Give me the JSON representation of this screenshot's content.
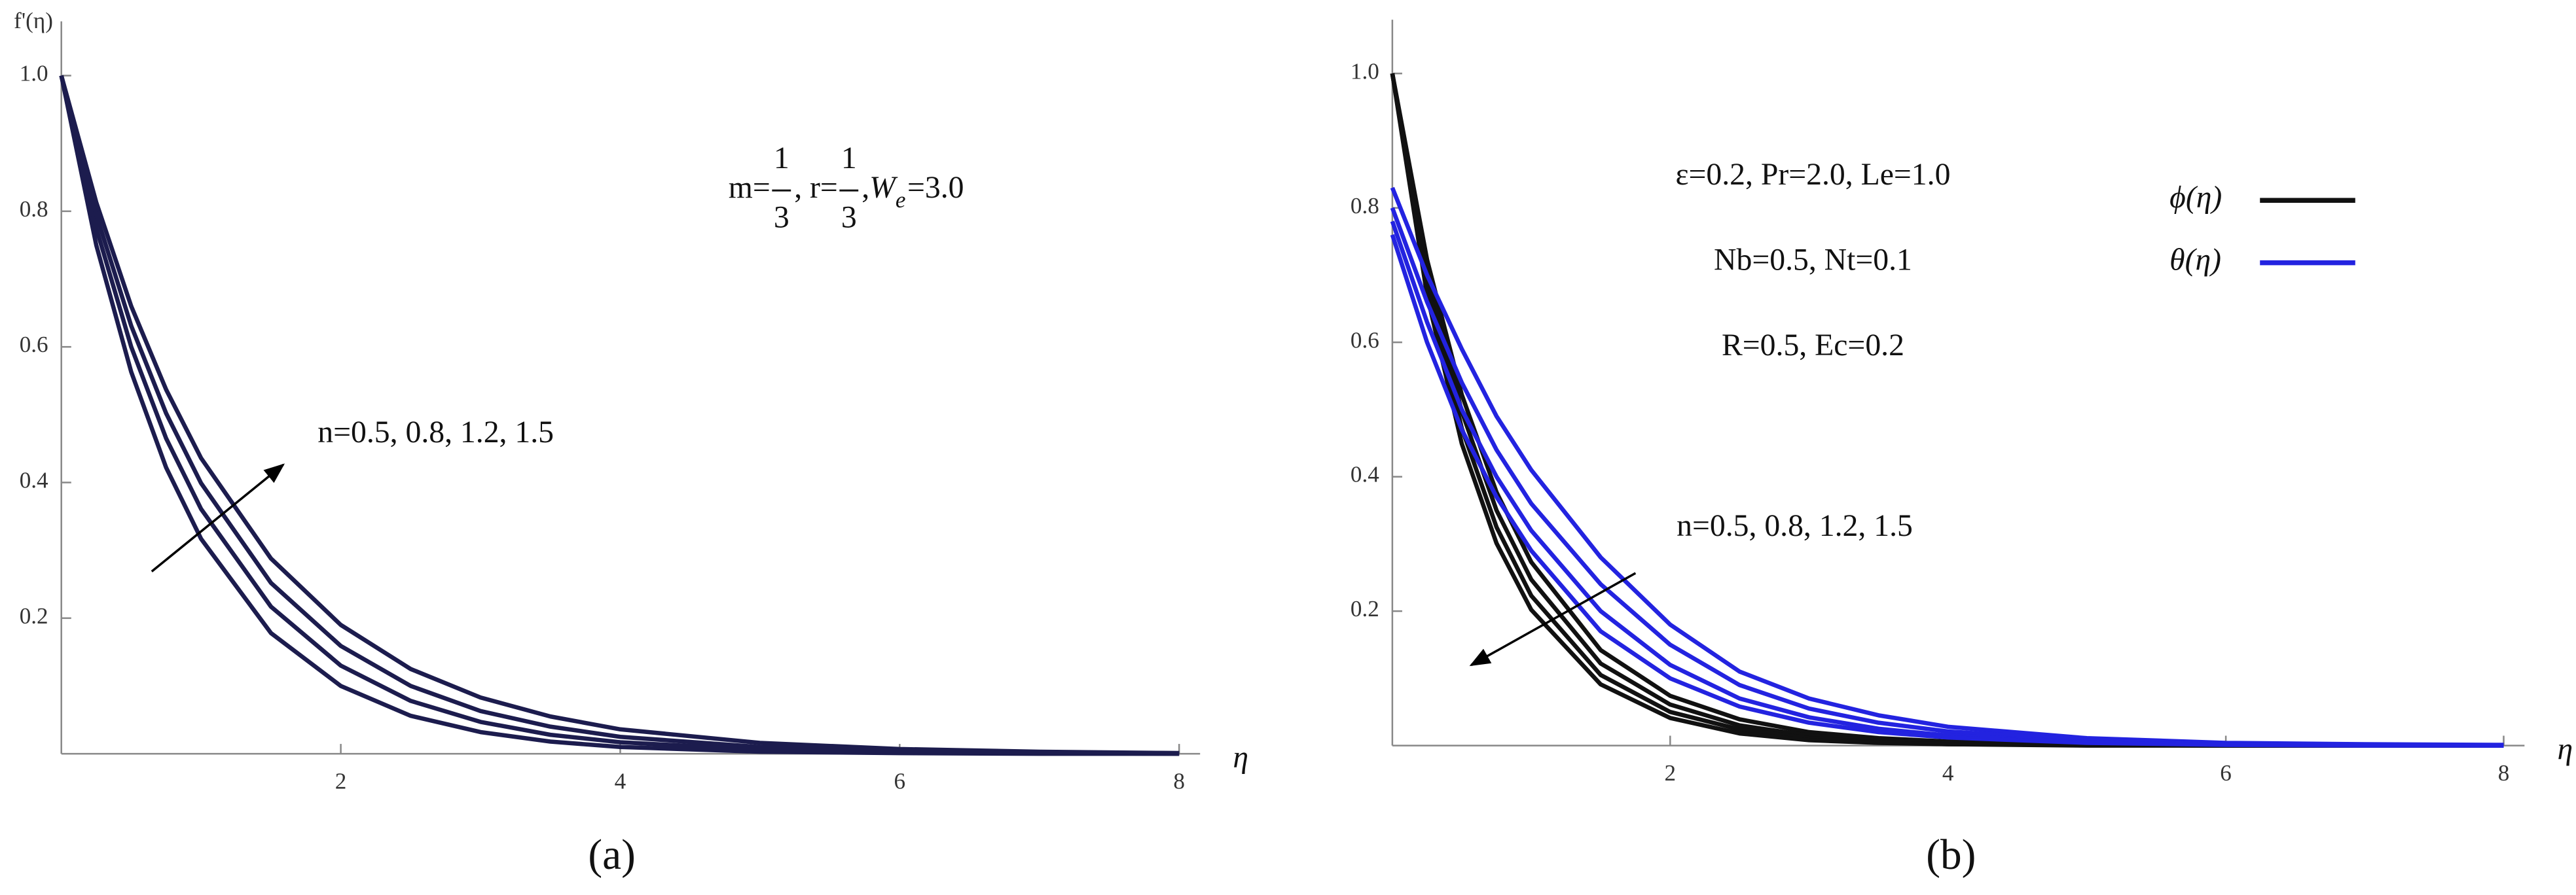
{
  "chart_data": [
    {
      "type": "line",
      "panel_label": "(a)",
      "y_label": "f'(η)",
      "x_label": "η",
      "xlim": [
        0,
        8.15
      ],
      "ylim": [
        0,
        1.08
      ],
      "xticks": [
        2,
        4,
        6,
        8
      ],
      "yticks": [
        0.2,
        0.4,
        0.6,
        0.8,
        {
          "value": 1,
          "label": "1.0"
        }
      ],
      "parameters": [
        {
          "text": "m="
        },
        {
          "num": "1",
          "den": "3"
        },
        {
          "text": ", r="
        },
        {
          "num": "1",
          "den": "3"
        },
        {
          "text": ", "
        },
        {
          "text": "W",
          "sub": "e"
        },
        {
          "text": "=3.0"
        }
      ],
      "annotations": [
        "n=0.5, 0.8, 1.2, 1.5"
      ],
      "x": [
        0,
        0.25,
        0.5,
        0.75,
        1,
        1.5,
        2,
        2.5,
        3,
        3.5,
        4,
        5,
        6,
        7,
        8
      ],
      "series": [
        {
          "color": "#1c1c4e",
          "values": [
            1,
            0.75,
            0.563,
            0.422,
            0.317,
            0.178,
            0.1,
            0.056,
            0.032,
            0.018,
            0.01,
            0.003,
            0.001,
            0,
            0
          ]
        },
        {
          "color": "#1c1c4e",
          "values": [
            1,
            0.775,
            0.6,
            0.465,
            0.361,
            0.217,
            0.13,
            0.078,
            0.047,
            0.028,
            0.017,
            0.006,
            0.002,
            0.001,
            0
          ]
        },
        {
          "color": "#1c1c4e",
          "values": [
            1,
            0.795,
            0.631,
            0.502,
            0.399,
            0.252,
            0.159,
            0.1,
            0.063,
            0.04,
            0.025,
            0.01,
            0.004,
            0.002,
            0.001
          ]
        },
        {
          "color": "#1c1c4e",
          "values": [
            1,
            0.813,
            0.66,
            0.537,
            0.436,
            0.288,
            0.19,
            0.125,
            0.083,
            0.055,
            0.036,
            0.016,
            0.007,
            0.003,
            0.001
          ]
        }
      ]
    },
    {
      "type": "line",
      "panel_label": "(b)",
      "x_label": "η",
      "xlim": [
        0,
        8.15
      ],
      "ylim": [
        0,
        1.08
      ],
      "xticks": [
        2,
        4,
        6,
        8
      ],
      "yticks": [
        0.2,
        0.4,
        0.6,
        0.8,
        {
          "value": 1,
          "label": "1.0"
        }
      ],
      "annotations": [
        "ε=0.2, Pr=2.0, Le=1.0",
        "Nb=0.5, Nt=0.1",
        "R=0.5, Ec=0.2",
        "n=0.5, 0.8, 1.2, 1.5"
      ],
      "legend": [
        {
          "label": "ϕ(η)",
          "color": "#111111"
        },
        {
          "label": "θ(η)",
          "color": "#2323e0"
        }
      ],
      "x": [
        0,
        0.25,
        0.5,
        0.75,
        1,
        1.5,
        2,
        2.5,
        3,
        3.5,
        4,
        5,
        6,
        7,
        8
      ],
      "series": [
        {
          "color": "#111111",
          "values": [
            1,
            0.723,
            0.522,
            0.377,
            0.273,
            0.142,
            0.074,
            0.039,
            0.02,
            0.011,
            0.006,
            0.002,
            0,
            0,
            0
          ]
        },
        {
          "color": "#111111",
          "values": [
            1,
            0.705,
            0.497,
            0.35,
            0.247,
            0.122,
            0.061,
            0.03,
            0.015,
            0.007,
            0.004,
            0.001,
            0,
            0,
            0
          ]
        },
        {
          "color": "#111111",
          "values": [
            1,
            0.687,
            0.472,
            0.325,
            0.223,
            0.105,
            0.05,
            0.024,
            0.011,
            0.005,
            0.002,
            0.001,
            0,
            0,
            0
          ]
        },
        {
          "color": "#111111",
          "values": [
            1,
            0.67,
            0.449,
            0.301,
            0.202,
            0.091,
            0.041,
            0.018,
            0.008,
            0.004,
            0.002,
            0,
            0,
            0,
            0
          ]
        },
        {
          "color": "#2323e0",
          "values": [
            0.83,
            0.7,
            0.59,
            0.49,
            0.41,
            0.28,
            0.18,
            0.11,
            0.07,
            0.045,
            0.028,
            0.011,
            0.004,
            0.002,
            0.001
          ]
        },
        {
          "color": "#2323e0",
          "values": [
            0.8,
            0.66,
            0.54,
            0.44,
            0.36,
            0.24,
            0.15,
            0.09,
            0.055,
            0.034,
            0.021,
            0.008,
            0.003,
            0.001,
            0
          ]
        },
        {
          "color": "#2323e0",
          "values": [
            0.78,
            0.63,
            0.5,
            0.4,
            0.32,
            0.2,
            0.12,
            0.07,
            0.042,
            0.025,
            0.015,
            0.005,
            0.002,
            0.001,
            0
          ]
        },
        {
          "color": "#2323e0",
          "values": [
            0.76,
            0.6,
            0.47,
            0.37,
            0.29,
            0.17,
            0.1,
            0.058,
            0.034,
            0.02,
            0.012,
            0.004,
            0.001,
            0,
            0
          ]
        }
      ]
    }
  ]
}
